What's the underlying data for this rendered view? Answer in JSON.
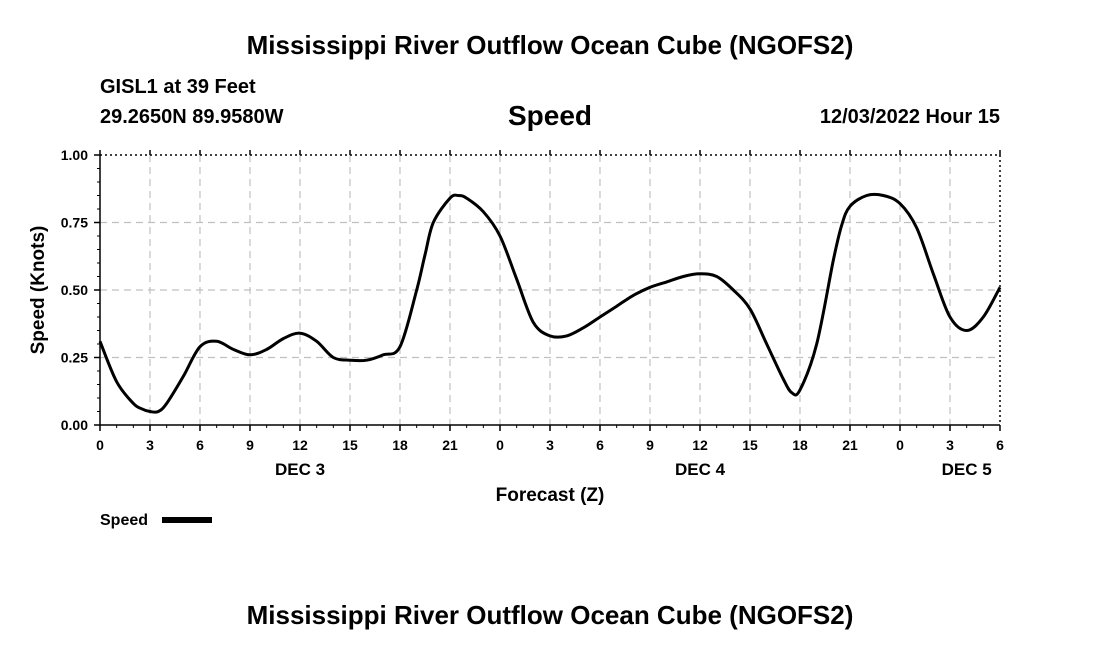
{
  "header": {
    "main_title": "Mississippi River Outflow Ocean Cube (NGOFS2)",
    "station": "GISL1 at 39 Feet",
    "coords": "29.2650N  89.9580W",
    "chart_title": "Speed",
    "datetime": "12/03/2022 Hour 15"
  },
  "footer": {
    "main_title": "Mississippi River Outflow Ocean Cube (NGOFS2)"
  },
  "chart_data": {
    "type": "line",
    "title": "Speed",
    "xlabel": "Forecast (Z)",
    "ylabel": "Speed (Knots)",
    "xlim": [
      0,
      54
    ],
    "ylim": [
      0,
      1
    ],
    "grid": true,
    "x_tick_values": [
      0,
      3,
      6,
      9,
      12,
      15,
      18,
      21,
      24,
      27,
      30,
      33,
      36,
      39,
      42,
      45,
      48,
      51,
      54
    ],
    "x_tick_labels": [
      "0",
      "3",
      "6",
      "9",
      "12",
      "15",
      "18",
      "21",
      "0",
      "3",
      "6",
      "9",
      "12",
      "15",
      "18",
      "21",
      "0",
      "3",
      "6"
    ],
    "y_tick_values": [
      0,
      0.25,
      0.5,
      0.75,
      1
    ],
    "y_tick_labels": [
      "0.00",
      "0.25",
      "0.50",
      "0.75",
      "1.00"
    ],
    "day_labels": [
      {
        "label": "DEC 3",
        "x": 12
      },
      {
        "label": "DEC 4",
        "x": 36
      },
      {
        "label": "DEC 5",
        "x": 52
      }
    ],
    "legend": {
      "label": "Speed",
      "position": "bottom-left"
    },
    "series": [
      {
        "name": "Speed",
        "color": "#000000",
        "x": [
          0,
          1,
          2,
          2.5,
          3,
          3.5,
          4,
          5,
          6,
          7,
          8,
          9,
          10,
          11,
          12,
          13,
          14,
          15,
          16,
          17,
          18,
          19,
          19.5,
          20,
          21,
          21.5,
          22,
          23,
          24,
          25,
          26,
          27,
          28,
          29,
          30,
          31,
          32,
          33,
          34,
          35,
          36,
          37,
          38,
          39,
          40,
          41,
          41.5,
          42,
          43,
          44,
          44.5,
          45,
          46,
          47,
          48,
          49,
          50,
          51,
          52,
          53,
          54
        ],
        "values": [
          0.31,
          0.16,
          0.08,
          0.06,
          0.05,
          0.05,
          0.08,
          0.18,
          0.29,
          0.31,
          0.28,
          0.26,
          0.28,
          0.32,
          0.34,
          0.31,
          0.25,
          0.24,
          0.24,
          0.26,
          0.29,
          0.5,
          0.63,
          0.75,
          0.84,
          0.85,
          0.84,
          0.79,
          0.7,
          0.54,
          0.38,
          0.33,
          0.33,
          0.36,
          0.4,
          0.44,
          0.48,
          0.51,
          0.53,
          0.55,
          0.56,
          0.55,
          0.5,
          0.43,
          0.3,
          0.17,
          0.12,
          0.13,
          0.3,
          0.61,
          0.74,
          0.81,
          0.85,
          0.85,
          0.82,
          0.73,
          0.56,
          0.4,
          0.35,
          0.4,
          0.51
        ]
      }
    ]
  }
}
